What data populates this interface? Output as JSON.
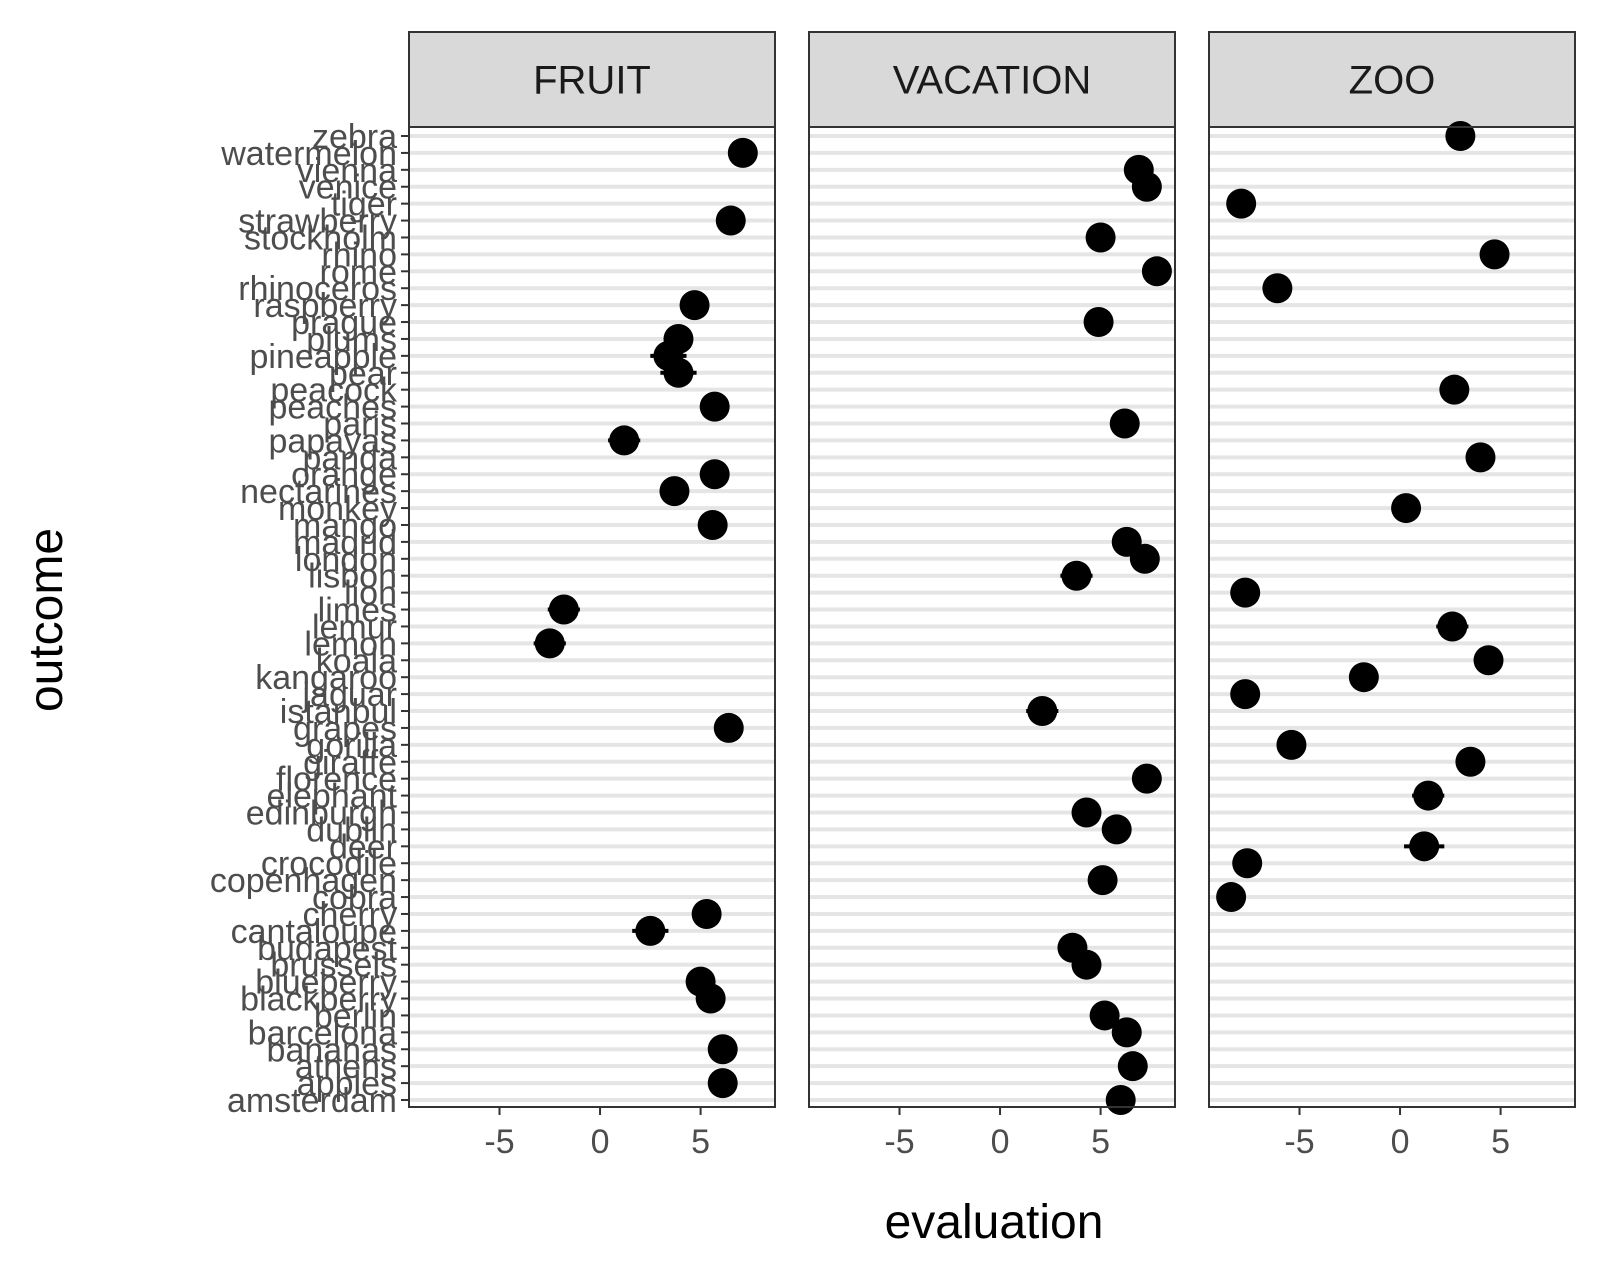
{
  "chart_data": {
    "type": "scatter",
    "xlabel": "evaluation",
    "ylabel": "outcome",
    "xlim": [
      -9.5,
      8.7
    ],
    "x_ticks": [
      "-5",
      "0",
      "5"
    ],
    "grid": "horizontal",
    "error_bars": true,
    "categories": [
      "amsterdam",
      "apples",
      "athens",
      "bananas",
      "barcelona",
      "berlin",
      "blackberry",
      "blueberry",
      "brussels",
      "budapest",
      "cantaloupe",
      "cherry",
      "cobra",
      "copenhagen",
      "crocodile",
      "deer",
      "dublin",
      "edinburgh",
      "elephant",
      "florence",
      "giraffe",
      "gorilla",
      "grapes",
      "istanbul",
      "jaguar",
      "kangaroo",
      "koala",
      "lemon",
      "lemur",
      "limes",
      "lion",
      "lisbon",
      "london",
      "madrid",
      "mango",
      "monkey",
      "nectarines",
      "orange",
      "panda",
      "papayas",
      "paris",
      "peaches",
      "peacock",
      "pear",
      "pineapple",
      "plums",
      "prague",
      "raspberry",
      "rhinoceros",
      "rome",
      "rhino",
      "stockholm",
      "strawberry",
      "tiger",
      "venice",
      "vienna",
      "watermelon",
      "zebra"
    ],
    "panels": [
      {
        "name": "FRUIT",
        "points": [
          {
            "y": "apples",
            "x": 6.1,
            "err": 0.3
          },
          {
            "y": "bananas",
            "x": 6.1,
            "err": 0.3
          },
          {
            "y": "blackberry",
            "x": 5.5,
            "err": 0.3
          },
          {
            "y": "blueberry",
            "x": 5.0,
            "err": 0.3
          },
          {
            "y": "cantaloupe",
            "x": 2.5,
            "err": 0.9
          },
          {
            "y": "cherry",
            "x": 5.3,
            "err": 0.3
          },
          {
            "y": "grapes",
            "x": 6.4,
            "err": 0.3
          },
          {
            "y": "lemon",
            "x": -2.5,
            "err": 0.8
          },
          {
            "y": "limes",
            "x": -1.8,
            "err": 0.8
          },
          {
            "y": "mango",
            "x": 5.6,
            "err": 0.3
          },
          {
            "y": "nectarines",
            "x": 3.7,
            "err": 0.5
          },
          {
            "y": "orange",
            "x": 5.7,
            "err": 0.4
          },
          {
            "y": "papayas",
            "x": 1.2,
            "err": 0.8
          },
          {
            "y": "peaches",
            "x": 5.7,
            "err": 0.3
          },
          {
            "y": "pear",
            "x": 3.9,
            "err": 0.9
          },
          {
            "y": "pineapple",
            "x": 3.4,
            "err": 0.9
          },
          {
            "y": "plums",
            "x": 3.9,
            "err": 0.5
          },
          {
            "y": "raspberry",
            "x": 4.7,
            "err": 0.7
          },
          {
            "y": "strawberry",
            "x": 6.5,
            "err": 0.3
          },
          {
            "y": "watermelon",
            "x": 7.1,
            "err": 0.3
          }
        ]
      },
      {
        "name": "VACATION",
        "points": [
          {
            "y": "amsterdam",
            "x": 6.0,
            "err": 0.3
          },
          {
            "y": "athens",
            "x": 6.6,
            "err": 0.3
          },
          {
            "y": "barcelona",
            "x": 6.3,
            "err": 0.3
          },
          {
            "y": "berlin",
            "x": 5.2,
            "err": 0.3
          },
          {
            "y": "brussels",
            "x": 4.3,
            "err": 0.3
          },
          {
            "y": "budapest",
            "x": 3.6,
            "err": 0.5
          },
          {
            "y": "copenhagen",
            "x": 5.1,
            "err": 0.3
          },
          {
            "y": "dublin",
            "x": 5.8,
            "err": 0.3
          },
          {
            "y": "edinburgh",
            "x": 4.3,
            "err": 0.4
          },
          {
            "y": "florence",
            "x": 7.3,
            "err": 0.3
          },
          {
            "y": "istanbul",
            "x": 2.1,
            "err": 0.8
          },
          {
            "y": "lisbon",
            "x": 3.8,
            "err": 0.8
          },
          {
            "y": "london",
            "x": 7.2,
            "err": 0.3
          },
          {
            "y": "madrid",
            "x": 6.3,
            "err": 0.3
          },
          {
            "y": "paris",
            "x": 6.2,
            "err": 0.3
          },
          {
            "y": "prague",
            "x": 4.9,
            "err": 0.3
          },
          {
            "y": "rome",
            "x": 7.8,
            "err": 0.3
          },
          {
            "y": "stockholm",
            "x": 5.0,
            "err": 0.3
          },
          {
            "y": "venice",
            "x": 7.3,
            "err": 0.3
          },
          {
            "y": "vienna",
            "x": 6.9,
            "err": 0.3
          }
        ]
      },
      {
        "name": "ZOO",
        "points": [
          {
            "y": "cobra",
            "x": -8.4,
            "err": 0.3
          },
          {
            "y": "crocodile",
            "x": -7.6,
            "err": 0.3
          },
          {
            "y": "deer",
            "x": 1.2,
            "err": 1.0
          },
          {
            "y": "elephant",
            "x": 1.4,
            "err": 0.8
          },
          {
            "y": "giraffe",
            "x": 3.5,
            "err": 0.4
          },
          {
            "y": "gorilla",
            "x": -5.4,
            "err": 0.6
          },
          {
            "y": "jaguar",
            "x": -7.7,
            "err": 0.3
          },
          {
            "y": "kangaroo",
            "x": -1.8,
            "err": 0.4
          },
          {
            "y": "koala",
            "x": 4.4,
            "err": 0.3
          },
          {
            "y": "lemur",
            "x": 2.6,
            "err": 0.8
          },
          {
            "y": "lion",
            "x": -7.7,
            "err": 0.3
          },
          {
            "y": "monkey",
            "x": 0.3,
            "err": 0.4
          },
          {
            "y": "panda",
            "x": 4.0,
            "err": 0.3
          },
          {
            "y": "peacock",
            "x": 2.7,
            "err": 0.4
          },
          {
            "y": "rhinoceros",
            "x": -6.1,
            "err": 0.3
          },
          {
            "y": "rhino",
            "x": 4.7,
            "err": 0.3
          },
          {
            "y": "tiger",
            "x": -7.9,
            "err": 0.3
          },
          {
            "y": "zebra",
            "x": 3.0,
            "err": 0.3
          }
        ]
      }
    ]
  }
}
